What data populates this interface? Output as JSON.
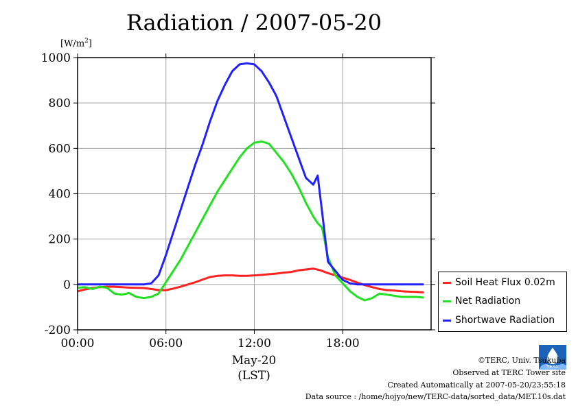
{
  "title": "Radiation / 2007-05-20",
  "unit_label": "[W/m",
  "unit_sup": "2",
  "unit_close": "]",
  "legend": [
    {
      "name": "Soil Heat Flux 0.02m",
      "color": "#ff2020"
    },
    {
      "name": "Net Radiation",
      "color": "#20e020"
    },
    {
      "name": "Shortwave Radiation",
      "color": "#2020ff"
    }
  ],
  "xlabel_line1": "May-20",
  "xlabel_line2": "(LST)",
  "footer": {
    "credit": "©TERC, Univ. Tsukuba",
    "site": "Observed at TERC Tower site",
    "created": "Created Automatically at 2007-05-20/23:55:18",
    "source": "Data source : /home/hojyo/new/TERC-data/sorted_data/MET.10s.dat"
  },
  "logo_text": "TERC",
  "chart_data": {
    "type": "line",
    "title": "Radiation / 2007-05-20",
    "ylabel": "[W/m2]",
    "xlabel": "May-20 (LST)",
    "xlim": [
      0,
      24
    ],
    "ylim": [
      -200,
      1000
    ],
    "x_ticks": [
      0,
      6,
      12,
      18
    ],
    "x_tick_labels": [
      "00:00",
      "06:00",
      "12:00",
      "18:00"
    ],
    "y_ticks": [
      -200,
      0,
      200,
      400,
      600,
      800,
      1000
    ],
    "y_tick_labels": [
      "-200",
      "0",
      "200",
      "400",
      "600",
      "800",
      "1000"
    ],
    "grid": true,
    "legend_position": "right-bottom-outside",
    "series": [
      {
        "name": "Soil Heat Flux 0.02m",
        "color": "#ff2020",
        "x": [
          0,
          0.5,
          1,
          1.5,
          2,
          2.5,
          3,
          3.5,
          4,
          4.5,
          5,
          5.5,
          6,
          6.5,
          7,
          7.5,
          8,
          8.5,
          9,
          9.5,
          10,
          10.5,
          11,
          11.5,
          12,
          12.5,
          13,
          13.5,
          14,
          14.5,
          15,
          15.5,
          16,
          16.5,
          17,
          17.5,
          18,
          18.5,
          19,
          19.5,
          20,
          20.5,
          21,
          21.5,
          22,
          22.5,
          23,
          23.5
        ],
        "y": [
          -30,
          -22,
          -16,
          -12,
          -10,
          -10,
          -12,
          -14,
          -15,
          -16,
          -20,
          -25,
          -25,
          -18,
          -10,
          0,
          10,
          22,
          33,
          38,
          40,
          40,
          38,
          38,
          40,
          42,
          45,
          48,
          52,
          55,
          62,
          66,
          70,
          62,
          50,
          40,
          30,
          20,
          8,
          -3,
          -12,
          -20,
          -25,
          -27,
          -30,
          -32,
          -33,
          -35
        ]
      },
      {
        "name": "Net Radiation",
        "color": "#20e020",
        "x": [
          0,
          0.5,
          1,
          1.5,
          2,
          2.5,
          3,
          3.5,
          4,
          4.5,
          5,
          5.5,
          6,
          6.5,
          7,
          7.5,
          8,
          8.5,
          9,
          9.5,
          10,
          10.5,
          11,
          11.5,
          12,
          12.5,
          13,
          13.5,
          14,
          14.5,
          15,
          15.5,
          16,
          16.3,
          16.6,
          17,
          17.5,
          18,
          18.5,
          19,
          19.5,
          20,
          20.5,
          21,
          21.5,
          22,
          22.5,
          23,
          23.5
        ],
        "y": [
          -15,
          -12,
          -20,
          -10,
          -15,
          -40,
          -45,
          -38,
          -55,
          -60,
          -55,
          -40,
          10,
          60,
          110,
          170,
          230,
          290,
          350,
          410,
          460,
          510,
          560,
          600,
          625,
          630,
          620,
          580,
          540,
          490,
          430,
          360,
          300,
          270,
          250,
          120,
          40,
          5,
          -30,
          -55,
          -70,
          -60,
          -40,
          -45,
          -50,
          -55,
          -55,
          -55,
          -58
        ]
      },
      {
        "name": "Shortwave Radiation",
        "color": "#2020ff",
        "x": [
          0,
          0.5,
          1,
          1.5,
          2,
          2.5,
          3,
          3.5,
          4,
          4.5,
          5,
          5.5,
          6,
          6.5,
          7,
          7.5,
          8,
          8.5,
          9,
          9.5,
          10,
          10.5,
          11,
          11.5,
          12,
          12.5,
          13,
          13.5,
          14,
          14.5,
          15,
          15.5,
          16,
          16.3,
          16.6,
          17,
          17.5,
          18,
          18.5,
          19,
          19.5,
          20,
          20.5,
          21,
          21.5,
          22,
          22.5,
          23,
          23.5
        ],
        "y": [
          0,
          0,
          0,
          0,
          0,
          0,
          0,
          0,
          0,
          0,
          5,
          40,
          130,
          230,
          330,
          430,
          530,
          620,
          720,
          810,
          880,
          940,
          970,
          975,
          970,
          940,
          890,
          830,
          740,
          650,
          560,
          470,
          440,
          480,
          320,
          100,
          60,
          20,
          5,
          0,
          0,
          0,
          0,
          0,
          0,
          0,
          0,
          0,
          0
        ]
      }
    ]
  }
}
